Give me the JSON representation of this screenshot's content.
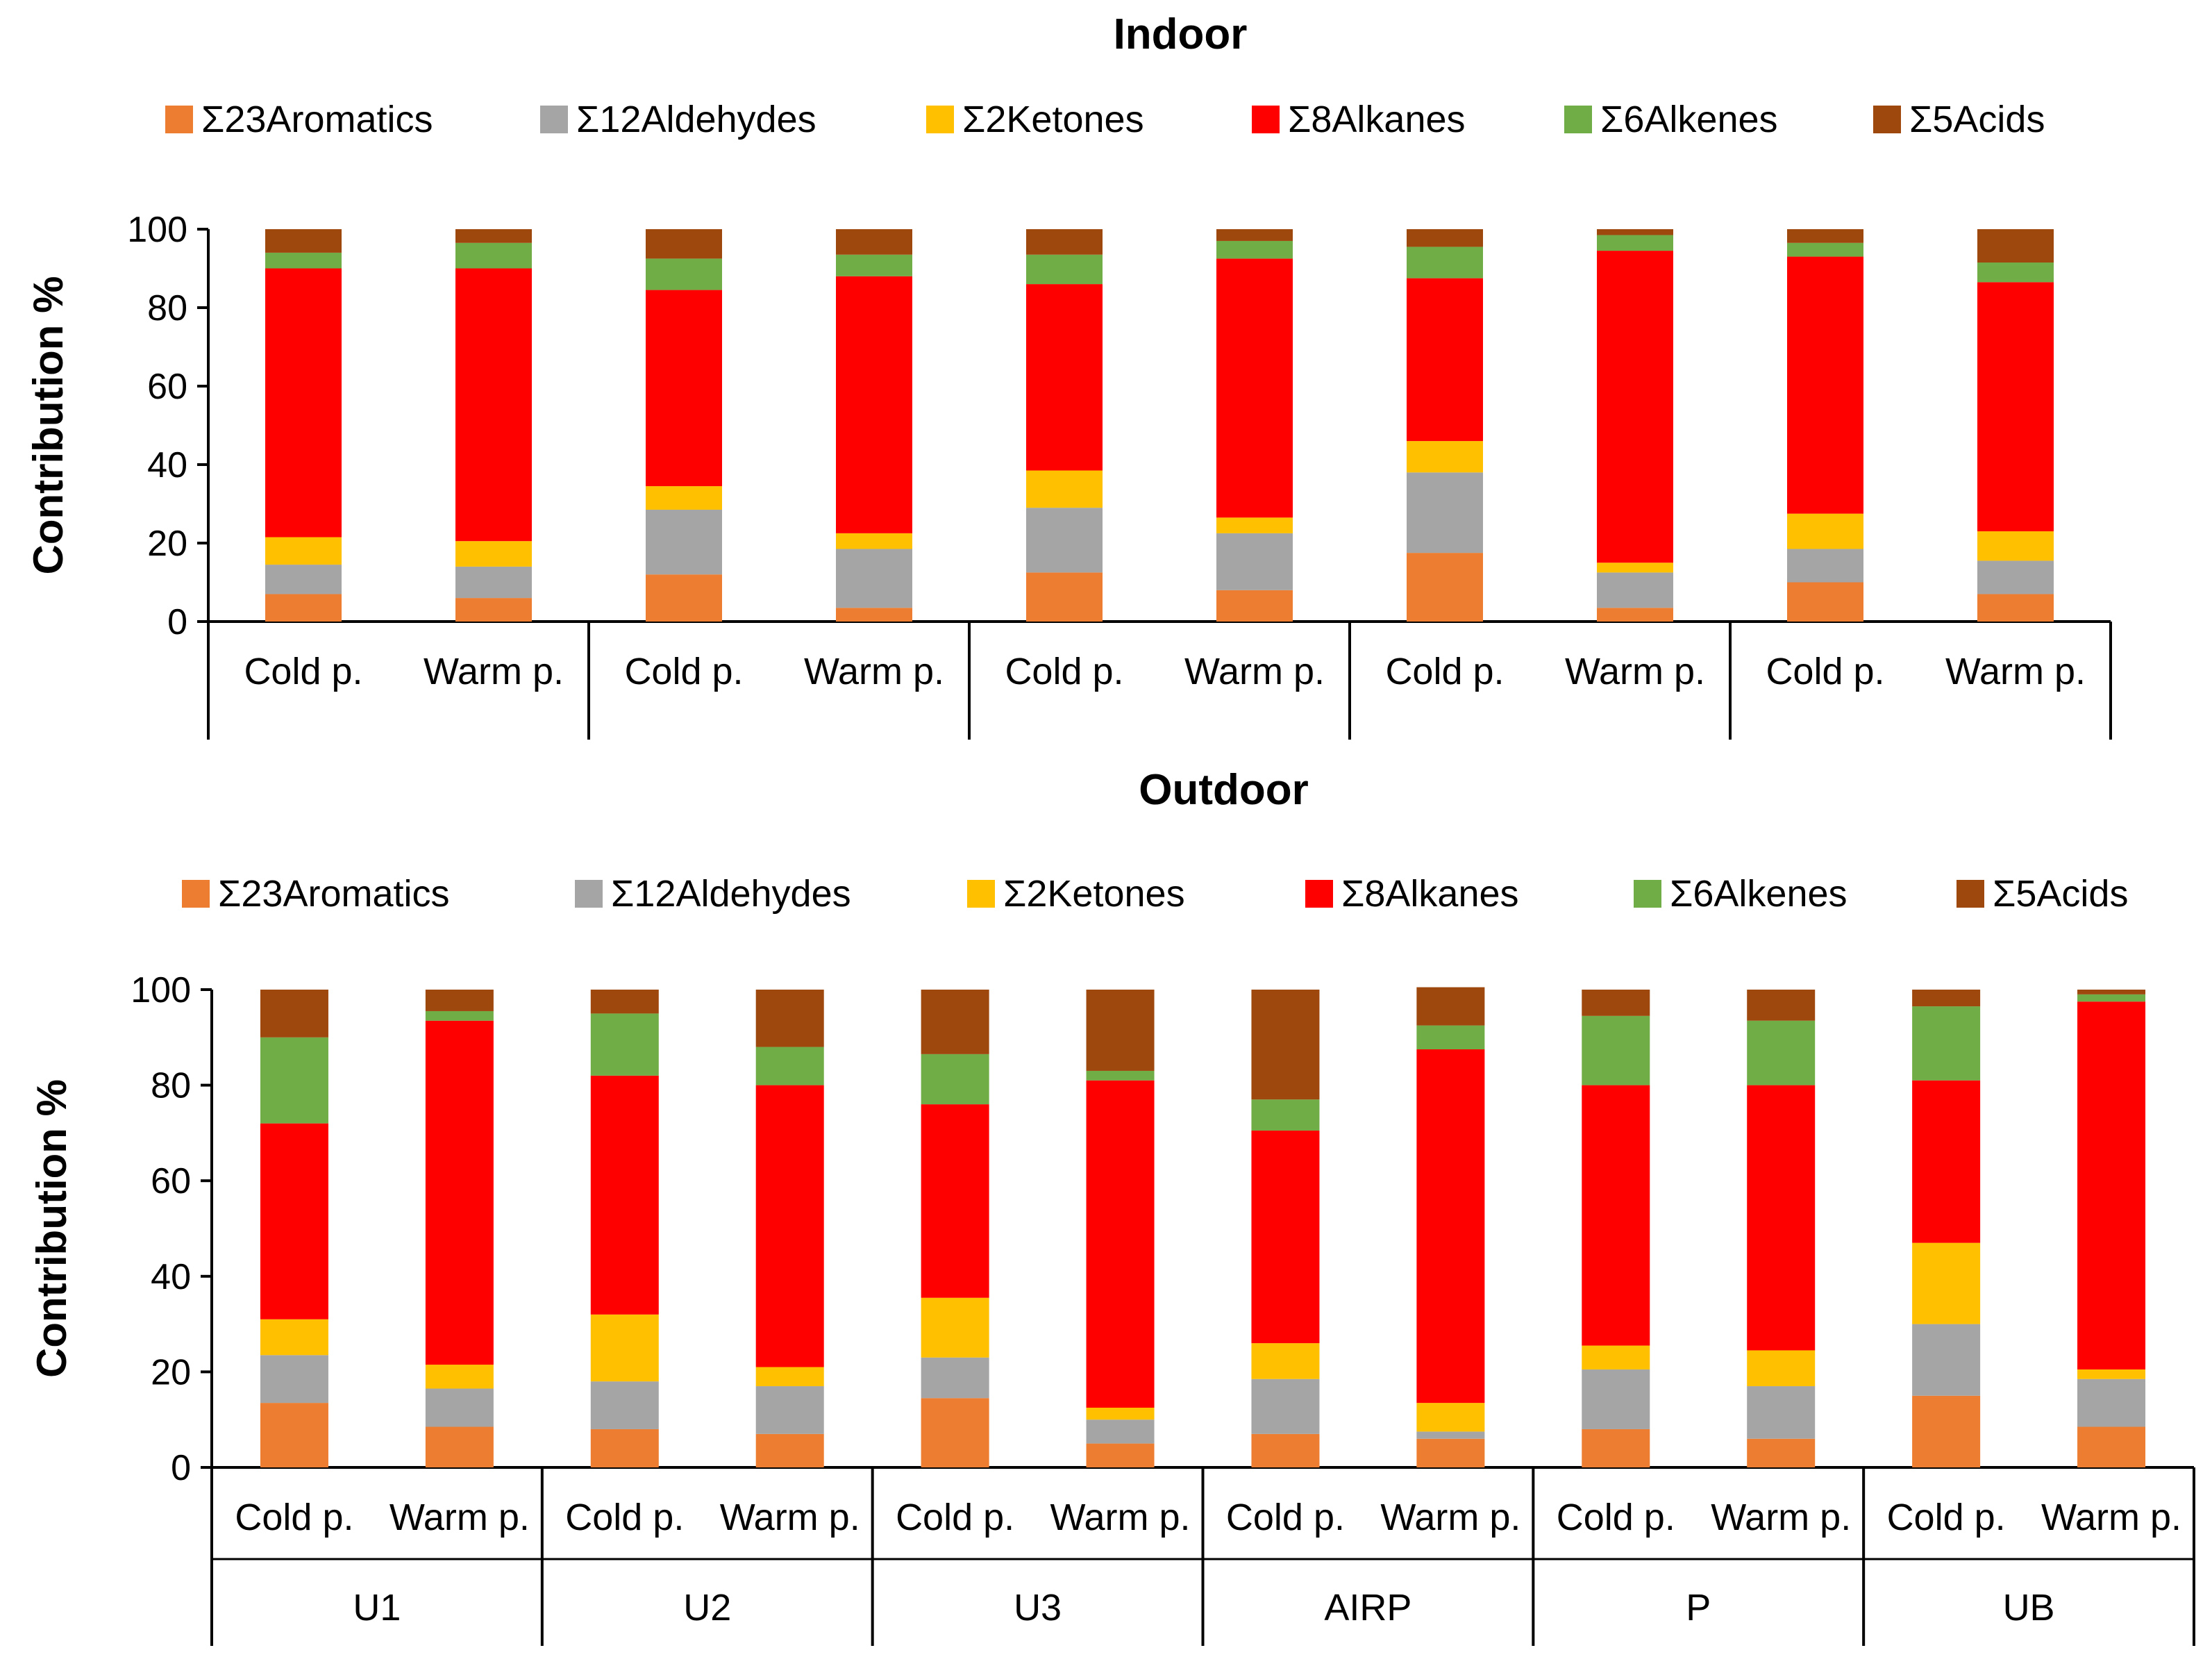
{
  "chart_data": [
    {
      "type": "bar",
      "stacked": true,
      "title": "Indoor",
      "ylabel": "Contribution %",
      "xlabel": "",
      "ylim": [
        0,
        100
      ],
      "yticks": [
        0,
        20,
        40,
        60,
        80,
        100
      ],
      "legend_position": "top",
      "categories": [
        "Cold p.",
        "Warm p.",
        "Cold p.",
        "Warm p.",
        "Cold p.",
        "Warm p.",
        "Cold p.",
        "Warm p.",
        "Cold p.",
        "Warm p."
      ],
      "groups": [],
      "series": [
        {
          "name": "Σ23Aromatics",
          "color": "#ED7D31",
          "values": [
            7,
            6,
            12,
            3.5,
            12.5,
            8,
            17.5,
            3.5,
            10,
            7
          ]
        },
        {
          "name": "Σ12Aldehydes",
          "color": "#A5A5A5",
          "values": [
            7.5,
            8,
            16.5,
            15,
            16.5,
            14.5,
            20.5,
            9,
            8.5,
            8.5
          ]
        },
        {
          "name": "Σ2Ketones",
          "color": "#FFC000",
          "values": [
            7,
            6.5,
            6,
            4,
            9.5,
            4,
            8,
            2.5,
            9,
            7.5
          ]
        },
        {
          "name": "Σ8Alkanes",
          "color": "#FF0000",
          "values": [
            68.5,
            69.5,
            50,
            65.5,
            47.5,
            66,
            41.5,
            79.5,
            65.5,
            63.5
          ]
        },
        {
          "name": "Σ6Alkenes",
          "color": "#70AD47",
          "values": [
            4,
            6.5,
            8,
            5.5,
            7.5,
            4.5,
            8,
            4,
            3.5,
            5
          ]
        },
        {
          "name": "Σ5Acids",
          "color": "#9E480E",
          "values": [
            6,
            3.5,
            7.5,
            6.5,
            6.5,
            3,
            4.5,
            1.5,
            3.5,
            8.5
          ]
        }
      ]
    },
    {
      "type": "bar",
      "stacked": true,
      "title": "Outdoor",
      "ylabel": "Contribution %",
      "xlabel": "",
      "ylim": [
        0,
        100
      ],
      "yticks": [
        0,
        20,
        40,
        60,
        80,
        100
      ],
      "legend_position": "top",
      "categories": [
        "Cold p.",
        "Warm p.",
        "Cold p.",
        "Warm p.",
        "Cold p.",
        "Warm p.",
        "Cold p.",
        "Warm p.",
        "Cold p.",
        "Warm p.",
        "Cold p.",
        "Warm p."
      ],
      "groups": [
        "U1",
        "U2",
        "U3",
        "AIRP",
        "P",
        "UB"
      ],
      "series": [
        {
          "name": "Σ23Aromatics",
          "color": "#ED7D31",
          "values": [
            13.5,
            8.5,
            8,
            7,
            14.5,
            5,
            7,
            6,
            8,
            6,
            15,
            8.5
          ]
        },
        {
          "name": "Σ12Aldehydes",
          "color": "#A5A5A5",
          "values": [
            10,
            8,
            10,
            10,
            8.5,
            5,
            11.5,
            1.5,
            12.5,
            11,
            15,
            10
          ]
        },
        {
          "name": "Σ2Ketones",
          "color": "#FFC000",
          "values": [
            7.5,
            5,
            14,
            4,
            12.5,
            2.5,
            7.5,
            6,
            5,
            7.5,
            17,
            2
          ]
        },
        {
          "name": "Σ8Alkanes",
          "color": "#FF0000",
          "values": [
            41,
            72,
            50,
            59,
            40.5,
            68.5,
            44.5,
            74,
            54.5,
            55.5,
            34,
            77
          ]
        },
        {
          "name": "Σ6Alkenes",
          "color": "#70AD47",
          "values": [
            18,
            2,
            13,
            8,
            10.5,
            2,
            6.5,
            5,
            14.5,
            13.5,
            15.5,
            1.5
          ]
        },
        {
          "name": "Σ5Acids",
          "color": "#9E480E",
          "values": [
            10,
            4.5,
            5,
            12,
            13.5,
            17,
            23,
            8,
            5.5,
            6.5,
            3.5,
            1
          ]
        }
      ]
    }
  ]
}
